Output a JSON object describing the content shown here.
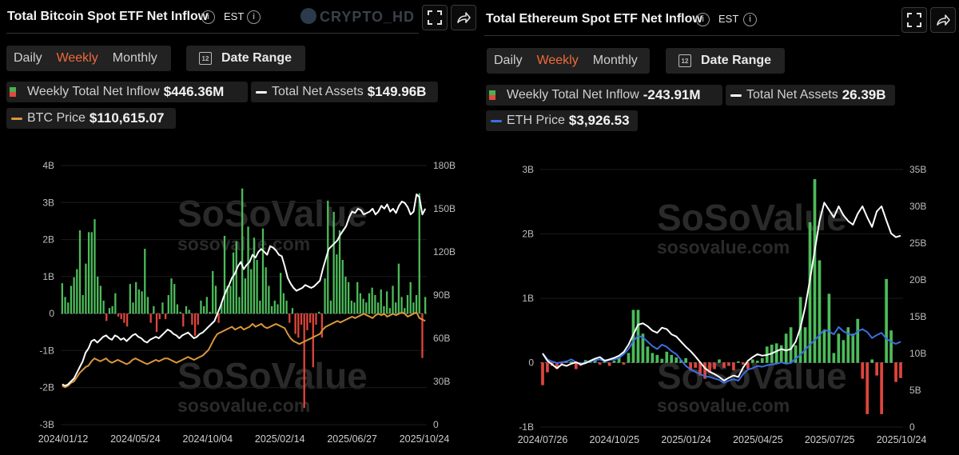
{
  "panels": [
    {
      "title": "Total Bitcoin Spot ETF Net Inflow",
      "timezone": "EST",
      "periods": [
        "Daily",
        "Weekly",
        "Monthly"
      ],
      "active_period": "Weekly",
      "date_range_label": "Date Range",
      "legend": {
        "inflow": {
          "label": "Weekly Total Net Inflow",
          "value": "$446.36M"
        },
        "assets": {
          "label": "Total Net Assets",
          "value": "$149.96B"
        },
        "price": {
          "label": "BTC Price",
          "value": "$110,615.07"
        }
      },
      "watermark_brand": "SoSoValue",
      "watermark_site": "sosovalue.com"
    },
    {
      "title": "Total Ethereum Spot ETF Net Inflow",
      "timezone": "EST",
      "periods": [
        "Daily",
        "Weekly",
        "Monthly"
      ],
      "active_period": "Weekly",
      "date_range_label": "Date Range",
      "legend": {
        "inflow": {
          "label": "Weekly Total Net Inflow",
          "value": "-243.91M"
        },
        "assets": {
          "label": "Total Net Assets",
          "value": "26.39B"
        },
        "price": {
          "label": "ETH Price",
          "value": "$3,926.53"
        }
      },
      "watermark_brand": "SoSoValue",
      "watermark_site": "sosovalue.com"
    }
  ],
  "overlay_watermark": "CRYPTO_HD",
  "colors": {
    "positive": "#4cbb5a",
    "negative": "#e0453c",
    "assets_line": "#ffffff",
    "btc_price": "#d9963a",
    "eth_price": "#3b6fe0"
  },
  "chart_data": [
    {
      "type": "bar",
      "title": "Total Bitcoin Spot ETF Net Inflow",
      "left_axis": {
        "ticks": [
          "4B",
          "3B",
          "2B",
          "1B",
          "0",
          "-1B",
          "-2B",
          "-3B"
        ],
        "range": [
          -3,
          4
        ],
        "unit": "B"
      },
      "right_axis": {
        "ticks": [
          "180B",
          "150B",
          "120B",
          "90B",
          "60B",
          "30B",
          "0"
        ],
        "range": [
          0,
          180
        ],
        "unit": "B"
      },
      "x_ticks": [
        "2024/01/12",
        "2024/05/24",
        "2024/10/04",
        "2025/02/14",
        "2025/06/27",
        "2025/10/24"
      ],
      "series": [
        {
          "name": "Weekly Total Net Inflow",
          "unit": "B",
          "values": [
            0.82,
            0.45,
            0.3,
            0.75,
            0.98,
            1.2,
            2.25,
            0.5,
            1.35,
            2.2,
            2.2,
            2.55,
            1.0,
            0.75,
            0.35,
            -0.2,
            0.15,
            0.2,
            0.55,
            -0.08,
            -0.15,
            -0.25,
            -0.35,
            0.8,
            0.3,
            0.85,
            0.65,
            0.6,
            1.75,
            0.45,
            -0.25,
            0.2,
            -0.5,
            -0.15,
            0.3,
            -0.15,
            0.5,
            0.95,
            0.8,
            0.25,
            0.05,
            -0.35,
            0.2,
            0.1,
            -0.3,
            -0.6,
            -0.3,
            0.35,
            0.2,
            0.45,
            0.05,
            1.15,
            0.75,
            -0.25,
            0.3,
            2.1,
            0.75,
            0.75,
            1.65,
            1.95,
            0.45,
            3.38,
            0.95,
            2.35,
            1.2,
            2.05,
            1.45,
            0.35,
            2.3,
            1.25,
            0.75,
            0.2,
            0.35,
            0.25,
            1.1,
            0.55,
            0.35,
            -0.25,
            0.15,
            -0.55,
            -0.65,
            -0.3,
            -2.55,
            -0.45,
            -0.25,
            -1.45,
            -0.3,
            0.05,
            -0.65,
            0.95,
            3.05,
            0.35,
            2.75,
            1.6,
            2.25,
            1.45,
            1.0,
            0.85,
            0.35,
            0.3,
            0.85,
            0.55,
            0.4,
            0.3,
            0.55,
            0.7,
            0.5,
            0.3,
            0.65,
            0.2,
            0.6,
            0.15,
            0.75,
            0.3,
            1.35,
            0.45,
            0.15,
            0.5,
            0.85,
            0.3,
            0.5,
            3.25,
            -1.2,
            0.45
          ]
        },
        {
          "name": "Total Net Assets",
          "unit": "B",
          "values": [
            28,
            27,
            28,
            30,
            32,
            36,
            40,
            44,
            50,
            53,
            58,
            59,
            57,
            59,
            61,
            62,
            60,
            59,
            62,
            61,
            59,
            60,
            58,
            60,
            62,
            63,
            61,
            60,
            58,
            57,
            59,
            60,
            61,
            60,
            62,
            64,
            66,
            65,
            63,
            62,
            60,
            62,
            63,
            64,
            62,
            60,
            61,
            63,
            64,
            66,
            68,
            70,
            72,
            77,
            82,
            88,
            93,
            97,
            102,
            105,
            110,
            113,
            108,
            111,
            113,
            118,
            116,
            120,
            122,
            120,
            118,
            124,
            123,
            121,
            118,
            117,
            110,
            102,
            98,
            95,
            93,
            94,
            95,
            97,
            96,
            95,
            96,
            98,
            100,
            108,
            115,
            122,
            124,
            126,
            128,
            132,
            135,
            138,
            144,
            148,
            147,
            150,
            149,
            146,
            147,
            148,
            150,
            146,
            148,
            152,
            150,
            153,
            148,
            150,
            147,
            152,
            155,
            154,
            151,
            146,
            148,
            160,
            158,
            146,
            150
          ]
        },
        {
          "name": "BTC Price",
          "unit": "B",
          "values": [
            27,
            26,
            27,
            29,
            30,
            33,
            36,
            38,
            40,
            41,
            44,
            46,
            45,
            44,
            45,
            46,
            44,
            43,
            44,
            45,
            44,
            43,
            42,
            43,
            45,
            46,
            45,
            44,
            43,
            42,
            43,
            44,
            45,
            44,
            45,
            46,
            46,
            45,
            44,
            43,
            44,
            45,
            46,
            47,
            46,
            45,
            46,
            47,
            48,
            50,
            52,
            56,
            60,
            63,
            64,
            65,
            66,
            67,
            68,
            66,
            67,
            68,
            66,
            67,
            68,
            70,
            68,
            69,
            70,
            68,
            67,
            68,
            69,
            70,
            69,
            68,
            67,
            63,
            60,
            58,
            57,
            56,
            57,
            58,
            59,
            60,
            61,
            62,
            63,
            66,
            68,
            69,
            70,
            71,
            72,
            71,
            72,
            73,
            74,
            75,
            74,
            75,
            76,
            77,
            76,
            75,
            74,
            76,
            77,
            76,
            77,
            75,
            76,
            77,
            76,
            77,
            78,
            77,
            75,
            76,
            77,
            78,
            74,
            73,
            72
          ]
        }
      ]
    },
    {
      "type": "bar",
      "title": "Total Ethereum Spot ETF Net Inflow",
      "left_axis": {
        "ticks": [
          "3B",
          "2B",
          "1B",
          "0",
          "-1B"
        ],
        "range": [
          -1,
          3
        ],
        "unit": "B"
      },
      "right_axis": {
        "ticks": [
          "35B",
          "30B",
          "25B",
          "20B",
          "15B",
          "10B",
          "5B",
          "0"
        ],
        "range": [
          0,
          35
        ],
        "unit": "B"
      },
      "x_ticks": [
        "2024/07/26",
        "2024/10/25",
        "2025/01/24",
        "2025/04/25",
        "2025/07/25",
        "2025/10/24"
      ],
      "series": [
        {
          "name": "Weekly Total Net Inflow",
          "unit": "B",
          "values": [
            -0.35,
            -0.15,
            -0.05,
            -0.1,
            -0.02,
            0.03,
            0.02,
            -0.1,
            -0.05,
            0.04,
            0.02,
            0.06,
            -0.03,
            0.05,
            -0.05,
            0.03,
            0.08,
            -0.03,
            0.15,
            0.82,
            0.82,
            0.45,
            0.25,
            0.15,
            0.12,
            0.06,
            0.17,
            0.12,
            0.08,
            0.04,
            0.07,
            -0.12,
            -0.08,
            -0.2,
            -0.25,
            -0.15,
            -0.1,
            0.05,
            -0.08,
            -0.05,
            -0.12,
            0.02,
            -0.03,
            -0.1,
            0.05,
            0.03,
            0.07,
            0.25,
            0.28,
            0.3,
            0.27,
            0.45,
            0.55,
            0.27,
            1.02,
            0.55,
            2.18,
            2.85,
            1.59,
            0.5,
            1.07,
            0.15,
            0.45,
            0.35,
            0.55,
            0.45,
            0.68,
            -0.25,
            -0.8,
            0.05,
            -0.2,
            -0.8,
            1.3,
            0.5,
            -0.3,
            -0.24
          ]
        },
        {
          "name": "Total Net Assets",
          "unit": "B",
          "values": [
            10,
            9,
            8.5,
            8,
            8.5,
            8.3,
            8.6,
            8.8,
            8.5,
            8.7,
            9,
            9.3,
            9.5,
            9,
            9.2,
            9.4,
            9.7,
            10.2,
            11.2,
            12.6,
            13.9,
            14.1,
            13.7,
            13.1,
            12.8,
            13.5,
            13.3,
            12.6,
            12.3,
            11.6,
            10.9,
            10.3,
            9.6,
            8.8,
            8,
            7.5,
            7.2,
            6.8,
            6.3,
            6.7,
            7,
            6.8,
            8.1,
            9,
            9.5,
            9.9,
            9.7,
            9.8,
            10,
            10.3,
            10.6,
            10.4,
            10.6,
            11.6,
            13.5,
            16.3,
            20,
            24,
            28,
            30.5,
            29.5,
            28.5,
            30,
            28.8,
            28,
            27.5,
            29,
            30,
            28.5,
            27.2,
            29.3,
            30,
            28.1,
            26.3,
            25.8,
            26
          ]
        },
        {
          "name": "ETH Price",
          "unit": "B",
          "values": [
            10,
            9.2,
            8.9,
            8.7,
            8.8,
            8.9,
            9.2,
            8.8,
            8.6,
            8.8,
            8.9,
            9.1,
            9.2,
            8.9,
            9.1,
            9.2,
            9.4,
            9.9,
            10.6,
            11.7,
            12.4,
            12.2,
            11.6,
            11,
            10.6,
            11.2,
            10.9,
            10.3,
            9.9,
            9.1,
            8.3,
            7.8,
            7.5,
            7.2,
            6.9,
            6.8,
            6.6,
            6.4,
            6,
            6.3,
            6.5,
            6.3,
            7.2,
            7.8,
            8,
            8.3,
            8.2,
            8.4,
            8.5,
            8.6,
            8.8,
            8.6,
            8.7,
            9.3,
            9.8,
            10.5,
            11.2,
            11.8,
            12.5,
            13.2,
            13,
            12.6,
            13.6,
            13,
            12.7,
            12.4,
            13,
            13.3,
            12.9,
            12.1,
            12.5,
            12.8,
            12,
            11.6,
            11.3,
            11.6
          ]
        }
      ]
    }
  ]
}
